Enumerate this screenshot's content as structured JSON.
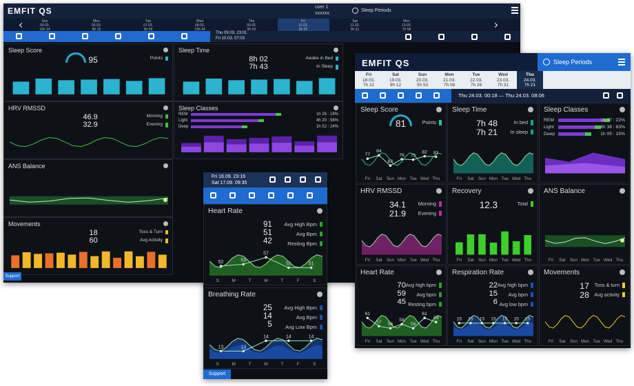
{
  "desktop": {
    "logo": "EMFIT QS",
    "user": "user 1",
    "account": "xxxxxx",
    "periods": "Sleep Periods",
    "days": [
      {
        "day": "Sun",
        "date": "05.03.",
        "time": "10h 14"
      },
      {
        "day": "Mon",
        "date": "06.03.",
        "time": "8h 15"
      },
      {
        "day": "Tue",
        "date": "07.03.",
        "time": "9h 09"
      },
      {
        "day": "Wed",
        "date": "08.03.",
        "time": "10h 44"
      },
      {
        "day": "Thu",
        "date": "09.03.",
        "time": "8h 03"
      },
      {
        "day": "Fri",
        "date": "10.03.",
        "time": "8h 02"
      },
      {
        "day": "Sat",
        "date": "11.03.",
        "time": "9h 21"
      },
      {
        "day": "Mon",
        "date": "13.03.",
        "time": "7h 58"
      }
    ],
    "range": [
      "Thu 09.03. 23:01",
      "Fri 10.03. 07:03"
    ],
    "tiles": [
      {
        "title": "Sleep Score",
        "values": [
          "95"
        ],
        "labels": [
          "Points"
        ]
      },
      {
        "title": "Sleep Time",
        "values": [
          "8h 02",
          "7h 43"
        ],
        "labels": [
          "Awake in Bed",
          "In Sleep"
        ]
      },
      {
        "title": "HRV RMSSD",
        "values": [
          "46.9",
          "32.9"
        ],
        "labels": [
          "Morning",
          "Evening"
        ]
      },
      {
        "title": "Sleep Classes",
        "classes": [
          {
            "name": "REM",
            "value": "1h 26 : 19%"
          },
          {
            "name": "Light",
            "value": "4h 20 : 56%"
          },
          {
            "name": "Deep",
            "value": "1h 52 : 24%"
          }
        ]
      },
      {
        "title": "ANS Balance"
      },
      {
        "title": "Movements",
        "values": [
          "18",
          "60"
        ],
        "labels": [
          "Toss & Turn",
          "Avg Activity"
        ]
      }
    ],
    "support": "Support"
  },
  "mobile": {
    "range": [
      "Fri 16.09. 23:16",
      "Sat 17.09. 09:35"
    ],
    "weekdays": [
      "S",
      "M",
      "T",
      "W",
      "T",
      "F",
      "S"
    ],
    "tiles": [
      {
        "title": "Heart Rate",
        "values": [
          "91",
          "51",
          "42"
        ],
        "labels": [
          "Avg High Bpm",
          "Avg Bpm",
          "Resting Bpm"
        ],
        "points": [
          52,
          53,
          57,
          51,
          51
        ]
      },
      {
        "title": "Breathing Rate",
        "values": [
          "25",
          "14",
          "5"
        ],
        "labels": [
          "Avg High Bpm",
          "Avg Bpm",
          "Avg Low Bpm"
        ],
        "points": [
          13,
          13,
          14,
          14,
          14
        ]
      }
    ],
    "support": "Support"
  },
  "tablet": {
    "logo": "EMFIT QS",
    "periods": "Sleep Periods",
    "days": [
      {
        "day": "Fri",
        "date": "18.03.",
        "time": "7h 22"
      },
      {
        "day": "Sat",
        "date": "19.03.",
        "time": "9h 12"
      },
      {
        "day": "Sun",
        "date": "20.03.",
        "time": "5h 53"
      },
      {
        "day": "Mon",
        "date": "21.03.",
        "time": "7h 08"
      },
      {
        "day": "Tue",
        "date": "22.03.",
        "time": "7h 26"
      },
      {
        "day": "Wed",
        "date": "23.03.",
        "time": "7h 31"
      },
      {
        "day": "Thu",
        "date": "24.03.",
        "time": "7h 21"
      }
    ],
    "range": "Thu 24.03. 00:18 — Thu 24.03. 08:06",
    "weekdays": [
      "Fri",
      "Sat",
      "Sun",
      "Mon",
      "Tue",
      "Wed",
      "Thu"
    ],
    "tiles": [
      {
        "title": "Sleep Score",
        "values": [
          "81"
        ],
        "labels": [
          "Points"
        ],
        "points": [
          77,
          84,
          63,
          76,
          75,
          82,
          81
        ]
      },
      {
        "title": "Sleep Time",
        "values": [
          "7h 48",
          "7h 21"
        ],
        "labels": [
          "In bed",
          "In sleep"
        ]
      },
      {
        "title": "Sleep Classes",
        "classes": [
          {
            "name": "REM",
            "value": "1h 37 : 22%"
          },
          {
            "name": "Light",
            "value": "4h 38 : 63%"
          },
          {
            "name": "Deep",
            "value": "1h 05 : 15%"
          }
        ]
      },
      {
        "title": "HRV RMSSD",
        "values": [
          "34.1",
          "21.9"
        ],
        "labels": [
          "Morning",
          "Evening"
        ]
      },
      {
        "title": "Recovery",
        "values": [
          "12.3"
        ],
        "labels": [
          "Total"
        ]
      },
      {
        "title": "ANS Balance"
      },
      {
        "title": "Heart Rate",
        "values": [
          "70",
          "59",
          "45"
        ],
        "labels": [
          "Avg high bpm",
          "Avg bpm",
          "Resting bpm"
        ],
        "points": [
          61,
          57,
          56,
          58,
          56,
          61,
          59
        ]
      },
      {
        "title": "Respiration Rate",
        "values": [
          "22",
          "15",
          "6"
        ],
        "labels": [
          "Avg high bpm",
          "Avg bpm",
          "Avg low bpm"
        ],
        "points": [
          15,
          15,
          15,
          15,
          15,
          15,
          15
        ]
      },
      {
        "title": "Movements",
        "values": [
          "17",
          "28"
        ],
        "labels": [
          "Toss & turn",
          "Avg activity"
        ]
      }
    ]
  }
}
